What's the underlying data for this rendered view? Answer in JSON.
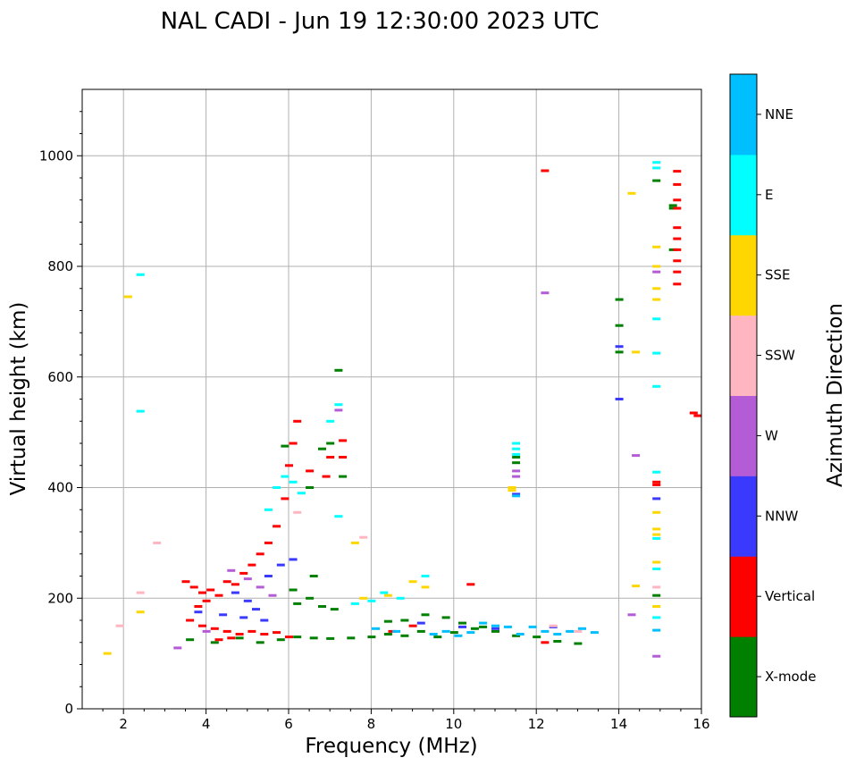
{
  "chart_data": {
    "type": "scatter",
    "title": "NAL CADI - Jun 19 12:30:00 2023 UTC",
    "xlabel": "Frequency (MHz)",
    "ylabel": "Virtual height (km)",
    "xlim": [
      1,
      16
    ],
    "ylim": [
      0,
      1120
    ],
    "xticks": [
      "2",
      "4",
      "6",
      "8",
      "10",
      "12",
      "14",
      "16"
    ],
    "yticks": [
      "0",
      "200",
      "400",
      "600",
      "800",
      "1000"
    ],
    "grid": true,
    "colorbar": {
      "label": "Azimuth Direction",
      "categories": [
        "X-mode",
        "Vertical",
        "NNW",
        "W",
        "SSW",
        "SSE",
        "E",
        "NNE"
      ],
      "colors": [
        "#008000",
        "#ff0000",
        "#3a3aff",
        "#b45cd6",
        "#ffb6c1",
        "#ffd700",
        "#00ffff",
        "#00bfff"
      ]
    },
    "series": [
      {
        "name": "X-mode",
        "points": [
          [
            3.6,
            125
          ],
          [
            4.2,
            120
          ],
          [
            4.8,
            128
          ],
          [
            5.3,
            120
          ],
          [
            5.8,
            125
          ],
          [
            6.2,
            130
          ],
          [
            6.6,
            128
          ],
          [
            7.0,
            127
          ],
          [
            7.5,
            128
          ],
          [
            8.0,
            130
          ],
          [
            8.4,
            135
          ],
          [
            8.8,
            132
          ],
          [
            9.2,
            140
          ],
          [
            9.6,
            130
          ],
          [
            10.0,
            138
          ],
          [
            10.5,
            145
          ],
          [
            11.0,
            140
          ],
          [
            11.5,
            132
          ],
          [
            12.0,
            130
          ],
          [
            12.5,
            122
          ],
          [
            13.0,
            118
          ],
          [
            6.2,
            190
          ],
          [
            6.5,
            200
          ],
          [
            6.8,
            185
          ],
          [
            7.1,
            180
          ],
          [
            6.1,
            215
          ],
          [
            6.6,
            240
          ],
          [
            7.3,
            420
          ],
          [
            7.0,
            480
          ],
          [
            6.8,
            470
          ],
          [
            6.5,
            400
          ],
          [
            5.9,
            475
          ],
          [
            7.2,
            612
          ],
          [
            11.5,
            455
          ],
          [
            11.5,
            445
          ],
          [
            14.0,
            740
          ],
          [
            14.0,
            693
          ],
          [
            14.0,
            645
          ],
          [
            14.9,
            955
          ],
          [
            14.9,
            205
          ],
          [
            15.3,
            830
          ],
          [
            15.3,
            905
          ],
          [
            15.3,
            910
          ],
          [
            9.3,
            170
          ],
          [
            9.8,
            165
          ],
          [
            10.2,
            155
          ],
          [
            10.7,
            148
          ],
          [
            8.8,
            160
          ],
          [
            8.4,
            158
          ]
        ]
      },
      {
        "name": "Vertical",
        "points": [
          [
            3.5,
            230
          ],
          [
            3.7,
            220
          ],
          [
            3.9,
            210
          ],
          [
            4.1,
            215
          ],
          [
            4.3,
            205
          ],
          [
            4.0,
            195
          ],
          [
            3.8,
            185
          ],
          [
            4.5,
            230
          ],
          [
            4.7,
            225
          ],
          [
            4.9,
            245
          ],
          [
            5.1,
            260
          ],
          [
            5.3,
            280
          ],
          [
            5.5,
            300
          ],
          [
            5.7,
            330
          ],
          [
            5.9,
            380
          ],
          [
            6.0,
            440
          ],
          [
            6.1,
            480
          ],
          [
            6.2,
            520
          ],
          [
            3.6,
            160
          ],
          [
            3.9,
            150
          ],
          [
            4.2,
            145
          ],
          [
            4.5,
            140
          ],
          [
            4.8,
            135
          ],
          [
            5.1,
            140
          ],
          [
            5.4,
            135
          ],
          [
            5.7,
            138
          ],
          [
            6.0,
            130
          ],
          [
            4.3,
            125
          ],
          [
            4.6,
            128
          ],
          [
            7.3,
            485
          ],
          [
            7.3,
            455
          ],
          [
            7.0,
            455
          ],
          [
            6.9,
            420
          ],
          [
            6.5,
            430
          ],
          [
            8.5,
            140
          ],
          [
            9.0,
            150
          ],
          [
            10.4,
            225
          ],
          [
            12.2,
            120
          ],
          [
            12.2,
            973
          ],
          [
            14.9,
            410
          ],
          [
            14.9,
            405
          ],
          [
            15.4,
            972
          ],
          [
            15.4,
            948
          ],
          [
            15.4,
            920
          ],
          [
            15.4,
            905
          ],
          [
            15.4,
            870
          ],
          [
            15.4,
            850
          ],
          [
            15.4,
            830
          ],
          [
            15.4,
            810
          ],
          [
            15.4,
            790
          ],
          [
            15.4,
            768
          ],
          [
            15.8,
            535
          ],
          [
            15.9,
            530
          ]
        ]
      },
      {
        "name": "NNW",
        "points": [
          [
            3.8,
            175
          ],
          [
            4.4,
            170
          ],
          [
            4.9,
            165
          ],
          [
            5.4,
            160
          ],
          [
            5.0,
            195
          ],
          [
            5.2,
            180
          ],
          [
            4.7,
            210
          ],
          [
            5.5,
            240
          ],
          [
            5.8,
            260
          ],
          [
            6.1,
            270
          ],
          [
            9.2,
            155
          ],
          [
            10.2,
            148
          ],
          [
            11.0,
            145
          ],
          [
            11.5,
            388
          ],
          [
            12.4,
            148
          ],
          [
            14.0,
            560
          ],
          [
            14.0,
            655
          ],
          [
            14.9,
            380
          ]
        ]
      },
      {
        "name": "W",
        "points": [
          [
            4.6,
            250
          ],
          [
            5.0,
            235
          ],
          [
            5.3,
            220
          ],
          [
            5.6,
            205
          ],
          [
            3.3,
            110
          ],
          [
            4.0,
            140
          ],
          [
            7.2,
            540
          ],
          [
            11.5,
            430
          ],
          [
            11.5,
            420
          ],
          [
            12.2,
            752
          ],
          [
            14.4,
            458
          ],
          [
            14.3,
            170
          ],
          [
            14.9,
            95
          ],
          [
            14.9,
            790
          ]
        ]
      },
      {
        "name": "SSW",
        "points": [
          [
            1.9,
            150
          ],
          [
            2.4,
            210
          ],
          [
            2.8,
            300
          ],
          [
            6.2,
            355
          ],
          [
            7.8,
            310
          ],
          [
            14.9,
            220
          ],
          [
            12.4,
            150
          ],
          [
            13.0,
            140
          ]
        ]
      },
      {
        "name": "SSE",
        "points": [
          [
            1.6,
            100
          ],
          [
            2.1,
            745
          ],
          [
            2.4,
            175
          ],
          [
            7.6,
            300
          ],
          [
            7.8,
            200
          ],
          [
            8.4,
            205
          ],
          [
            9.0,
            230
          ],
          [
            9.3,
            220
          ],
          [
            11.4,
            400
          ],
          [
            11.4,
            395
          ],
          [
            14.3,
            932
          ],
          [
            14.4,
            645
          ],
          [
            14.4,
            222
          ],
          [
            14.9,
            835
          ],
          [
            14.9,
            800
          ],
          [
            14.9,
            760
          ],
          [
            14.9,
            740
          ],
          [
            14.9,
            355
          ],
          [
            14.9,
            325
          ],
          [
            14.9,
            315
          ],
          [
            14.9,
            265
          ],
          [
            14.9,
            185
          ]
        ]
      },
      {
        "name": "E",
        "points": [
          [
            2.4,
            785
          ],
          [
            2.4,
            538
          ],
          [
            5.5,
            360
          ],
          [
            5.7,
            400
          ],
          [
            5.9,
            420
          ],
          [
            6.1,
            410
          ],
          [
            6.3,
            390
          ],
          [
            7.0,
            520
          ],
          [
            7.2,
            550
          ],
          [
            7.2,
            348
          ],
          [
            7.6,
            190
          ],
          [
            8.0,
            195
          ],
          [
            8.3,
            210
          ],
          [
            8.7,
            200
          ],
          [
            9.3,
            240
          ],
          [
            11.5,
            480
          ],
          [
            11.5,
            470
          ],
          [
            11.5,
            460
          ],
          [
            14.9,
            988
          ],
          [
            14.9,
            978
          ],
          [
            14.9,
            705
          ],
          [
            14.9,
            643
          ],
          [
            14.9,
            583
          ],
          [
            14.9,
            428
          ],
          [
            14.9,
            308
          ],
          [
            14.9,
            253
          ],
          [
            14.9,
            165
          ]
        ]
      },
      {
        "name": "NNE",
        "points": [
          [
            9.5,
            135
          ],
          [
            9.8,
            140
          ],
          [
            10.1,
            132
          ],
          [
            10.4,
            138
          ],
          [
            10.7,
            155
          ],
          [
            11.0,
            150
          ],
          [
            11.3,
            148
          ],
          [
            11.6,
            135
          ],
          [
            11.9,
            148
          ],
          [
            12.2,
            140
          ],
          [
            12.5,
            135
          ],
          [
            12.8,
            140
          ],
          [
            13.1,
            145
          ],
          [
            13.4,
            138
          ],
          [
            8.1,
            145
          ],
          [
            8.6,
            140
          ],
          [
            11.5,
            385
          ],
          [
            14.9,
            142
          ]
        ]
      }
    ]
  }
}
